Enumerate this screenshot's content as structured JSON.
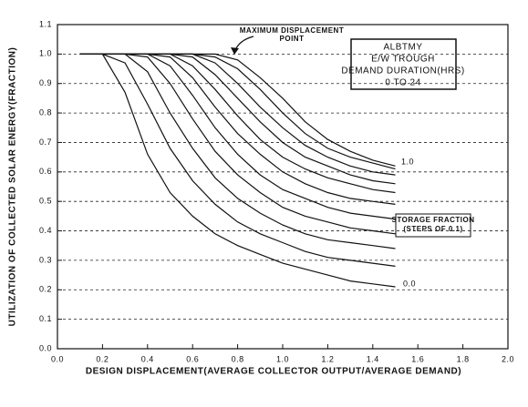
{
  "chart_data": {
    "type": "line",
    "x_label": "DESIGN DISPLACEMENT(AVERAGE COLLECTOR OUTPUT/AVERAGE DEMAND)",
    "y_label": "UTILIZATION OF COLLECTED SOLAR ENERGY(FRACTION)",
    "x": [
      0.1,
      0.2,
      0.3,
      0.4,
      0.5,
      0.6,
      0.7,
      0.8,
      0.9,
      1.0,
      1.1,
      1.2,
      1.3,
      1.4,
      1.5
    ],
    "series": [
      {
        "color": "#111111",
        "values": [
          1,
          1,
          0.87,
          0.66,
          0.53,
          0.45,
          0.39,
          0.35,
          0.32,
          0.29,
          0.27,
          0.25,
          0.23,
          0.22,
          0.21
        ]
      },
      {
        "color": "#111111",
        "values": [
          1,
          1,
          0.97,
          0.83,
          0.68,
          0.57,
          0.49,
          0.43,
          0.39,
          0.36,
          0.33,
          0.31,
          0.3,
          0.29,
          0.28
        ]
      },
      {
        "color": "#111111",
        "values": [
          1,
          1,
          1,
          0.94,
          0.8,
          0.68,
          0.58,
          0.51,
          0.46,
          0.42,
          0.39,
          0.37,
          0.36,
          0.35,
          0.34
        ]
      },
      {
        "color": "#111111",
        "values": [
          1,
          1,
          1,
          0.99,
          0.9,
          0.78,
          0.67,
          0.59,
          0.53,
          0.48,
          0.45,
          0.43,
          0.41,
          0.4,
          0.39
        ]
      },
      {
        "color": "#111111",
        "values": [
          1,
          1,
          1,
          1,
          0.96,
          0.86,
          0.75,
          0.66,
          0.59,
          0.54,
          0.51,
          0.48,
          0.46,
          0.45,
          0.44
        ]
      },
      {
        "color": "#111111",
        "values": [
          1,
          1,
          1,
          1,
          0.99,
          0.92,
          0.82,
          0.73,
          0.66,
          0.6,
          0.56,
          0.53,
          0.51,
          0.5,
          0.49
        ]
      },
      {
        "color": "#111111",
        "values": [
          1,
          1,
          1,
          1,
          1,
          0.96,
          0.88,
          0.79,
          0.71,
          0.65,
          0.61,
          0.58,
          0.56,
          0.54,
          0.53
        ]
      },
      {
        "color": "#111111",
        "values": [
          1,
          1,
          1,
          1,
          1,
          0.99,
          0.93,
          0.85,
          0.77,
          0.7,
          0.65,
          0.62,
          0.59,
          0.57,
          0.56
        ]
      },
      {
        "color": "#111111",
        "values": [
          1,
          1,
          1,
          1,
          1,
          1,
          0.97,
          0.9,
          0.82,
          0.75,
          0.69,
          0.65,
          0.62,
          0.6,
          0.59
        ]
      },
      {
        "color": "#111111",
        "values": [
          1,
          1,
          1,
          1,
          1,
          1,
          0.99,
          0.95,
          0.88,
          0.8,
          0.73,
          0.68,
          0.65,
          0.63,
          0.61
        ]
      },
      {
        "color": "#111111",
        "values": [
          1,
          1,
          1,
          1,
          1,
          1,
          1,
          0.98,
          0.92,
          0.85,
          0.77,
          0.71,
          0.67,
          0.64,
          0.62
        ]
      }
    ],
    "xlim": [
      0,
      2
    ],
    "ylim": [
      0,
      1.1
    ],
    "xticks": [
      {
        "value": 0,
        "label": "0.0"
      },
      0.2,
      0.4,
      0.6,
      0.8,
      {
        "value": 1,
        "label": "1.0"
      },
      1.2,
      1.4,
      1.6,
      1.8,
      {
        "value": 2,
        "label": "2.0"
      }
    ],
    "yticks": [
      {
        "value": 0,
        "label": "0.0"
      },
      0.1,
      0.2,
      0.3,
      0.4,
      0.5,
      0.6,
      0.7,
      0.8,
      0.9,
      {
        "value": 1,
        "label": "1.0"
      },
      1.1
    ],
    "grid": true,
    "annotations": {
      "max_point": [
        "MAXIMUM DISPLACEMENT",
        "POINT"
      ],
      "box": [
        "ALBTMY",
        "E/W TROUGH",
        "DEMAND DURATION(HRS)",
        "0 TO 24"
      ],
      "storage": [
        "STORAGE FRACTION",
        "(STEPS OF 0.1)"
      ],
      "top_label": "1.0",
      "bottom_label": "0.0"
    }
  }
}
